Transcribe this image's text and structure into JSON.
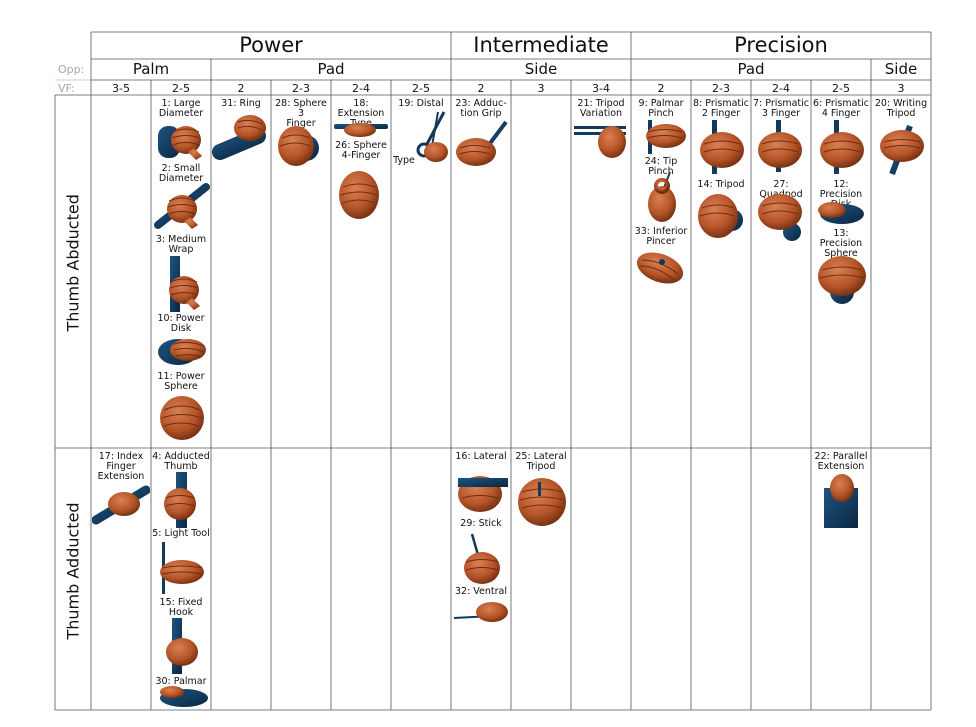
{
  "header": {
    "groups": [
      {
        "label": "Power"
      },
      {
        "label": "Intermediate"
      },
      {
        "label": "Precision"
      }
    ],
    "opp_label": "Opp:",
    "opp": [
      "Palm",
      "Pad",
      "Side",
      "Pad",
      "Side"
    ],
    "vf_label": "VF:",
    "vf": [
      "3-5",
      "2-5",
      "2",
      "2-3",
      "2-4",
      "2-5",
      "2",
      "3",
      "3-4",
      "2",
      "2-3",
      "2-4",
      "2-5",
      "3"
    ]
  },
  "rows": [
    {
      "label": "Thumb Abducted"
    },
    {
      "label": "Thumb Adducted"
    }
  ],
  "grasps": [
    {
      "text": "1: Large\nDiameter"
    },
    {
      "text": "2: Small\nDiameter"
    },
    {
      "text": "3: Medium\nWrap"
    },
    {
      "text": "10: Power\nDisk"
    },
    {
      "text": "11: Power\nSphere"
    },
    {
      "text": "31: Ring"
    },
    {
      "text": "28: Sphere 3\nFinger"
    },
    {
      "text": "18: Extension\nType"
    },
    {
      "text": "26: Sphere\n4-Finger"
    },
    {
      "text": "19: Distal"
    },
    {
      "text": "Type"
    },
    {
      "text": "23: Adduc-\ntion Grip"
    },
    {
      "text": "21: Tripod\nVariation"
    },
    {
      "text": "9: Palmar\nPinch"
    },
    {
      "text": "24: Tip Pinch"
    },
    {
      "text": "33: Inferior\nPincer"
    },
    {
      "text": "8: Prismatic\n2 Finger"
    },
    {
      "text": "14: Tripod"
    },
    {
      "text": "7: Prismatic\n3 Finger"
    },
    {
      "text": "27: Quadpod"
    },
    {
      "text": "6: Prismatic\n4 Finger"
    },
    {
      "text": "12: Precision\nDisk"
    },
    {
      "text": "13: Precision\nSphere"
    },
    {
      "text": "20: Writing\nTripod"
    },
    {
      "text": "17: Index\nFinger\nExtension"
    },
    {
      "text": "4: Adducted\nThumb"
    },
    {
      "text": "5: Light Tool"
    },
    {
      "text": "15: Fixed\nHook"
    },
    {
      "text": "30: Palmar"
    },
    {
      "text": "16: Lateral"
    },
    {
      "text": "29: Stick"
    },
    {
      "text": "32: Ventral"
    },
    {
      "text": "25: Lateral\nTripod"
    },
    {
      "text": "22: Parallel\nExtension"
    }
  ],
  "colors": {
    "skin": "#b85a30",
    "skin_dark": "#7a3414",
    "object": "#123a5c",
    "grid": "#555555",
    "gray": "#a8a8a8"
  }
}
